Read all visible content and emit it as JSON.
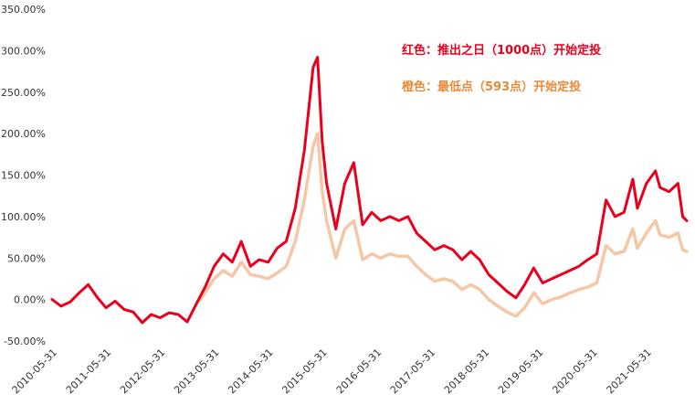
{
  "chart_data": {
    "type": "line",
    "title": "",
    "xlabel": "",
    "ylabel": "",
    "ylim": [
      -50,
      350
    ],
    "y_ticks": [
      "-50.00%",
      "0.00%",
      "50.00%",
      "100.00%",
      "150.00%",
      "200.00%",
      "250.00%",
      "300.00%",
      "350.00%"
    ],
    "x_ticks": [
      "2010-05-31",
      "2011-05-31",
      "2012-05-31",
      "2013-05-31",
      "2014-05-31",
      "2015-05-31",
      "2016-05-31",
      "2017-05-31",
      "2018-05-31",
      "2019-05-31",
      "2020-05-31",
      "2021-05-31"
    ],
    "x_range": [
      "2010-05-31",
      "2022-02-28"
    ],
    "grid": false,
    "colors": {
      "red": "#e8001c",
      "orange": "#f5c7a6"
    },
    "annotations": [
      {
        "text": "红色：推出之日（1000点）开始定投",
        "color": "#e8001c"
      },
      {
        "text": "橙色：最低点（593点）开始定投",
        "color": "#e98a3b"
      }
    ],
    "series": [
      {
        "color": "#e8001c",
        "points": [
          [
            "2010-05-31",
            0
          ],
          [
            "2010-07-31",
            -8
          ],
          [
            "2010-09-30",
            -3
          ],
          [
            "2010-11-30",
            8
          ],
          [
            "2011-01-31",
            18
          ],
          [
            "2011-03-31",
            3
          ],
          [
            "2011-05-31",
            -10
          ],
          [
            "2011-07-31",
            -2
          ],
          [
            "2011-09-30",
            -12
          ],
          [
            "2011-11-30",
            -15
          ],
          [
            "2012-01-31",
            -28
          ],
          [
            "2012-03-31",
            -18
          ],
          [
            "2012-05-31",
            -22
          ],
          [
            "2012-07-31",
            -16
          ],
          [
            "2012-09-30",
            -18
          ],
          [
            "2012-11-30",
            -27
          ],
          [
            "2013-01-31",
            -5
          ],
          [
            "2013-03-31",
            15
          ],
          [
            "2013-05-31",
            40
          ],
          [
            "2013-07-31",
            55
          ],
          [
            "2013-09-30",
            45
          ],
          [
            "2013-11-30",
            70
          ],
          [
            "2014-01-31",
            40
          ],
          [
            "2014-03-31",
            48
          ],
          [
            "2014-05-31",
            45
          ],
          [
            "2014-07-31",
            62
          ],
          [
            "2014-09-30",
            70
          ],
          [
            "2014-11-30",
            110
          ],
          [
            "2015-01-31",
            180
          ],
          [
            "2015-03-31",
            280
          ],
          [
            "2015-04-30",
            292
          ],
          [
            "2015-05-31",
            190
          ],
          [
            "2015-06-30",
            140
          ],
          [
            "2015-08-31",
            85
          ],
          [
            "2015-10-31",
            140
          ],
          [
            "2015-12-31",
            165
          ],
          [
            "2016-02-29",
            90
          ],
          [
            "2016-04-30",
            105
          ],
          [
            "2016-06-30",
            95
          ],
          [
            "2016-08-31",
            100
          ],
          [
            "2016-10-31",
            95
          ],
          [
            "2016-12-31",
            100
          ],
          [
            "2017-02-28",
            80
          ],
          [
            "2017-04-30",
            70
          ],
          [
            "2017-06-30",
            60
          ],
          [
            "2017-08-31",
            65
          ],
          [
            "2017-10-31",
            60
          ],
          [
            "2017-12-31",
            48
          ],
          [
            "2018-02-28",
            58
          ],
          [
            "2018-04-30",
            48
          ],
          [
            "2018-06-30",
            30
          ],
          [
            "2018-08-31",
            20
          ],
          [
            "2018-10-31",
            10
          ],
          [
            "2018-12-31",
            2
          ],
          [
            "2019-02-28",
            18
          ],
          [
            "2019-04-30",
            38
          ],
          [
            "2019-06-30",
            20
          ],
          [
            "2019-08-31",
            25
          ],
          [
            "2019-10-31",
            30
          ],
          [
            "2019-12-31",
            35
          ],
          [
            "2020-02-29",
            40
          ],
          [
            "2020-04-30",
            48
          ],
          [
            "2020-06-30",
            55
          ],
          [
            "2020-08-31",
            120
          ],
          [
            "2020-10-31",
            100
          ],
          [
            "2020-12-31",
            105
          ],
          [
            "2021-02-28",
            145
          ],
          [
            "2021-03-31",
            110
          ],
          [
            "2021-05-31",
            140
          ],
          [
            "2021-07-31",
            155
          ],
          [
            "2021-08-31",
            135
          ],
          [
            "2021-10-31",
            130
          ],
          [
            "2021-12-31",
            140
          ],
          [
            "2022-01-31",
            100
          ],
          [
            "2022-02-28",
            95
          ]
        ]
      },
      {
        "color": "#f5c7a6",
        "points": [
          [
            "2013-02-28",
            0
          ],
          [
            "2013-05-31",
            25
          ],
          [
            "2013-07-31",
            35
          ],
          [
            "2013-09-30",
            28
          ],
          [
            "2013-11-30",
            45
          ],
          [
            "2014-01-31",
            30
          ],
          [
            "2014-03-31",
            28
          ],
          [
            "2014-05-31",
            25
          ],
          [
            "2014-07-31",
            32
          ],
          [
            "2014-09-30",
            40
          ],
          [
            "2014-11-30",
            70
          ],
          [
            "2015-01-31",
            120
          ],
          [
            "2015-03-31",
            185
          ],
          [
            "2015-04-30",
            200
          ],
          [
            "2015-05-31",
            130
          ],
          [
            "2015-06-30",
            95
          ],
          [
            "2015-08-31",
            50
          ],
          [
            "2015-10-31",
            85
          ],
          [
            "2015-12-31",
            95
          ],
          [
            "2016-02-29",
            48
          ],
          [
            "2016-04-30",
            55
          ],
          [
            "2016-06-30",
            50
          ],
          [
            "2016-08-31",
            55
          ],
          [
            "2016-10-31",
            52
          ],
          [
            "2016-12-31",
            52
          ],
          [
            "2017-02-28",
            40
          ],
          [
            "2017-04-30",
            30
          ],
          [
            "2017-06-30",
            22
          ],
          [
            "2017-08-31",
            25
          ],
          [
            "2017-10-31",
            22
          ],
          [
            "2017-12-31",
            12
          ],
          [
            "2018-02-28",
            18
          ],
          [
            "2018-04-30",
            12
          ],
          [
            "2018-06-30",
            0
          ],
          [
            "2018-08-31",
            -8
          ],
          [
            "2018-10-31",
            -15
          ],
          [
            "2018-12-31",
            -20
          ],
          [
            "2019-02-28",
            -10
          ],
          [
            "2019-04-30",
            8
          ],
          [
            "2019-06-30",
            -5
          ],
          [
            "2019-08-31",
            0
          ],
          [
            "2019-10-31",
            3
          ],
          [
            "2019-12-31",
            8
          ],
          [
            "2020-02-29",
            12
          ],
          [
            "2020-04-30",
            15
          ],
          [
            "2020-06-30",
            20
          ],
          [
            "2020-08-31",
            65
          ],
          [
            "2020-10-31",
            55
          ],
          [
            "2020-12-31",
            58
          ],
          [
            "2021-02-28",
            85
          ],
          [
            "2021-03-31",
            62
          ],
          [
            "2021-05-31",
            80
          ],
          [
            "2021-07-31",
            95
          ],
          [
            "2021-08-31",
            78
          ],
          [
            "2021-10-31",
            75
          ],
          [
            "2021-12-31",
            80
          ],
          [
            "2022-01-31",
            60
          ],
          [
            "2022-02-28",
            58
          ]
        ]
      }
    ]
  }
}
